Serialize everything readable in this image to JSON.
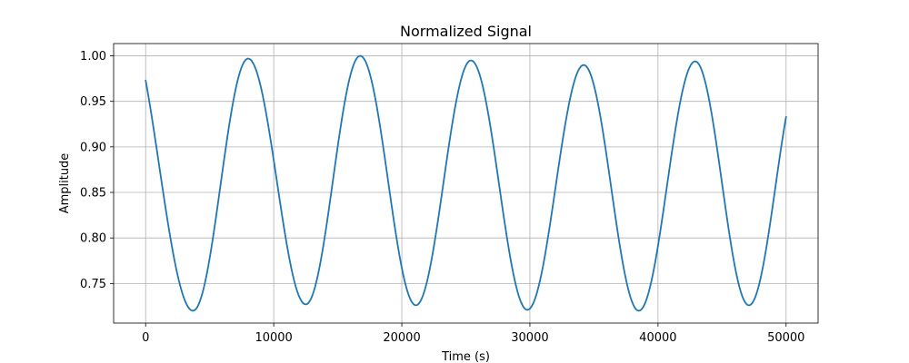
{
  "chart_data": {
    "type": "line",
    "title": "Normalized Signal",
    "xlabel": "Time (s)",
    "ylabel": "Amplitude",
    "xlim": [
      -2500,
      52500
    ],
    "ylim": [
      0.7065,
      1.0135
    ],
    "xticks": [
      0,
      10000,
      20000,
      30000,
      40000,
      50000
    ],
    "xtick_labels": [
      "0",
      "10000",
      "20000",
      "30000",
      "40000",
      "50000"
    ],
    "yticks": [
      0.75,
      0.8,
      0.85,
      0.9,
      0.95,
      1.0
    ],
    "ytick_labels": [
      "0.75",
      "0.80",
      "0.85",
      "0.90",
      "0.95",
      "1.00"
    ],
    "grid": true,
    "legend": "none",
    "color": "#1f77b4",
    "series": [
      {
        "x": [
          0,
          3700,
          8000,
          12500,
          16750,
          21100,
          25400,
          29800,
          34200,
          38500,
          42900,
          47100,
          50000
        ],
        "y": [
          0.973,
          0.72,
          0.997,
          0.727,
          1.0,
          0.726,
          0.995,
          0.721,
          0.99,
          0.72,
          0.994,
          0.726,
          0.933
        ]
      }
    ]
  }
}
